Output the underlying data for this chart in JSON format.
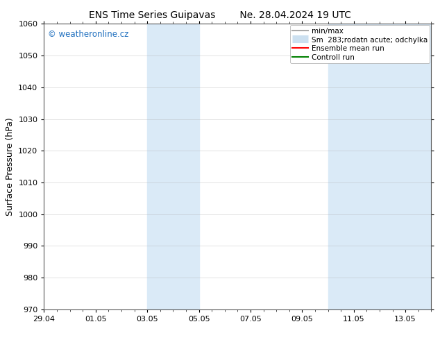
{
  "title_left": "ENS Time Series Guipavas",
  "title_right": "Ne. 28.04.2024 19 UTC",
  "ylabel": "Surface Pressure (hPa)",
  "ylim": [
    970,
    1060
  ],
  "yticks": [
    970,
    980,
    990,
    1000,
    1010,
    1020,
    1030,
    1040,
    1050,
    1060
  ],
  "xlim": [
    0,
    15
  ],
  "xtick_labels": [
    "29.04",
    "01.05",
    "03.05",
    "05.05",
    "07.05",
    "09.05",
    "11.05",
    "13.05"
  ],
  "xtick_positions": [
    0,
    2,
    4,
    6,
    8,
    10,
    12,
    14
  ],
  "shaded_regions": [
    {
      "start": 4.0,
      "end": 6.0
    },
    {
      "start": 11.0,
      "end": 15.0
    }
  ],
  "watermark_text": "© weatheronline.cz",
  "watermark_color": "#1e6fbf",
  "legend_entries": [
    {
      "label": "min/max",
      "color": "#aaaaaa",
      "lw": 1.5,
      "linestyle": "-"
    },
    {
      "label": "Sm  283;rodatn acute; odchylka",
      "color": "#cce0f0",
      "lw": 8,
      "linestyle": "-"
    },
    {
      "label": "Ensemble mean run",
      "color": "red",
      "lw": 1.5,
      "linestyle": "-"
    },
    {
      "label": "Controll run",
      "color": "green",
      "lw": 1.5,
      "linestyle": "-"
    }
  ],
  "background_color": "#ffffff",
  "shaded_color": "#daeaf7",
  "grid_color": "#aaaaaa",
  "title_fontsize": 10,
  "ylabel_fontsize": 9,
  "tick_fontsize": 8,
  "legend_fontsize": 7.5
}
